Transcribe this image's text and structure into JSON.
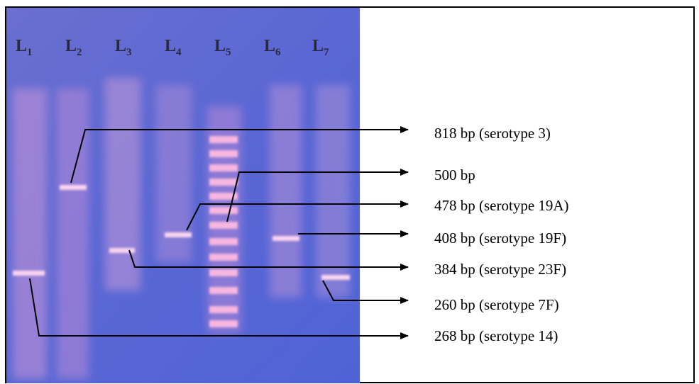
{
  "lanes": [
    {
      "main": "L",
      "sub": "1"
    },
    {
      "main": "L",
      "sub": "2"
    },
    {
      "main": "L",
      "sub": "3"
    },
    {
      "main": "L",
      "sub": "4"
    },
    {
      "main": "L",
      "sub": "5"
    },
    {
      "main": "L",
      "sub": "6"
    },
    {
      "main": "L",
      "sub": "7"
    }
  ],
  "annotations": [
    "818 bp (serotype 3)",
    "500 bp",
    "478 bp (serotype 19A)",
    "408 bp (serotype 19F)",
    "384 bp (serotype 23F)",
    "260 bp (serotype 7F)",
    "268 bp (serotype 14)"
  ]
}
